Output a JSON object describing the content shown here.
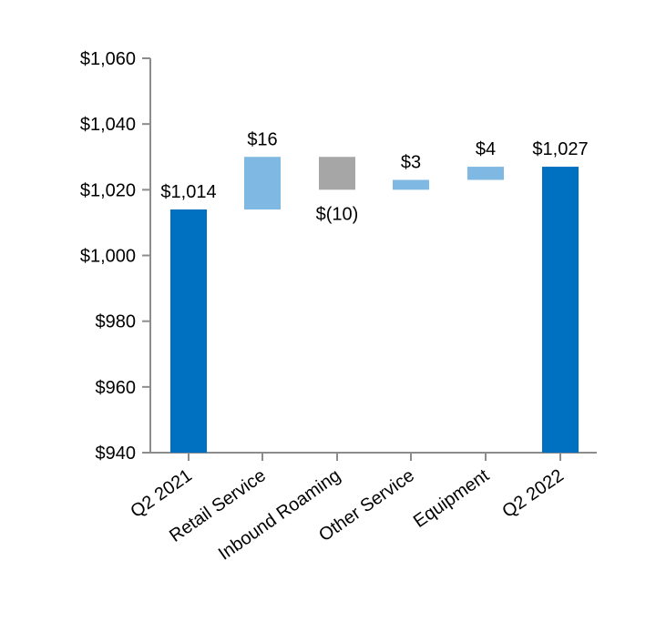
{
  "chart_data": {
    "type": "waterfall",
    "categories": [
      "Q2 2021",
      "Retail Service",
      "Inbound Roaming",
      "Other Service",
      "Equipment",
      "Q2 2022"
    ],
    "bars": [
      {
        "category": "Q2 2021",
        "kind": "total",
        "start": 940,
        "end": 1014,
        "label": "$1,014"
      },
      {
        "category": "Retail Service",
        "kind": "increase",
        "start": 1014,
        "end": 1030,
        "label": "$16"
      },
      {
        "category": "Inbound Roaming",
        "kind": "decrease",
        "start": 1030,
        "end": 1020,
        "label": "$(10)"
      },
      {
        "category": "Other Service",
        "kind": "increase",
        "start": 1020,
        "end": 1023,
        "label": "$3"
      },
      {
        "category": "Equipment",
        "kind": "increase",
        "start": 1023,
        "end": 1027,
        "label": "$4"
      },
      {
        "category": "Q2 2022",
        "kind": "total",
        "start": 940,
        "end": 1027,
        "label": "$1,027"
      }
    ],
    "ylim": [
      940,
      1060
    ],
    "yticks": [
      940,
      960,
      980,
      1000,
      1020,
      1040,
      1060
    ],
    "ytick_labels": [
      "$940",
      "$960",
      "$980",
      "$1,000",
      "$1,020",
      "$1,040",
      "$1,060"
    ],
    "colors": {
      "total": "#0070C0",
      "increase": "#7FB8E2",
      "decrease": "#A6A6A6",
      "axis": "#8C8C8C"
    },
    "grid": false,
    "legend": "none"
  }
}
